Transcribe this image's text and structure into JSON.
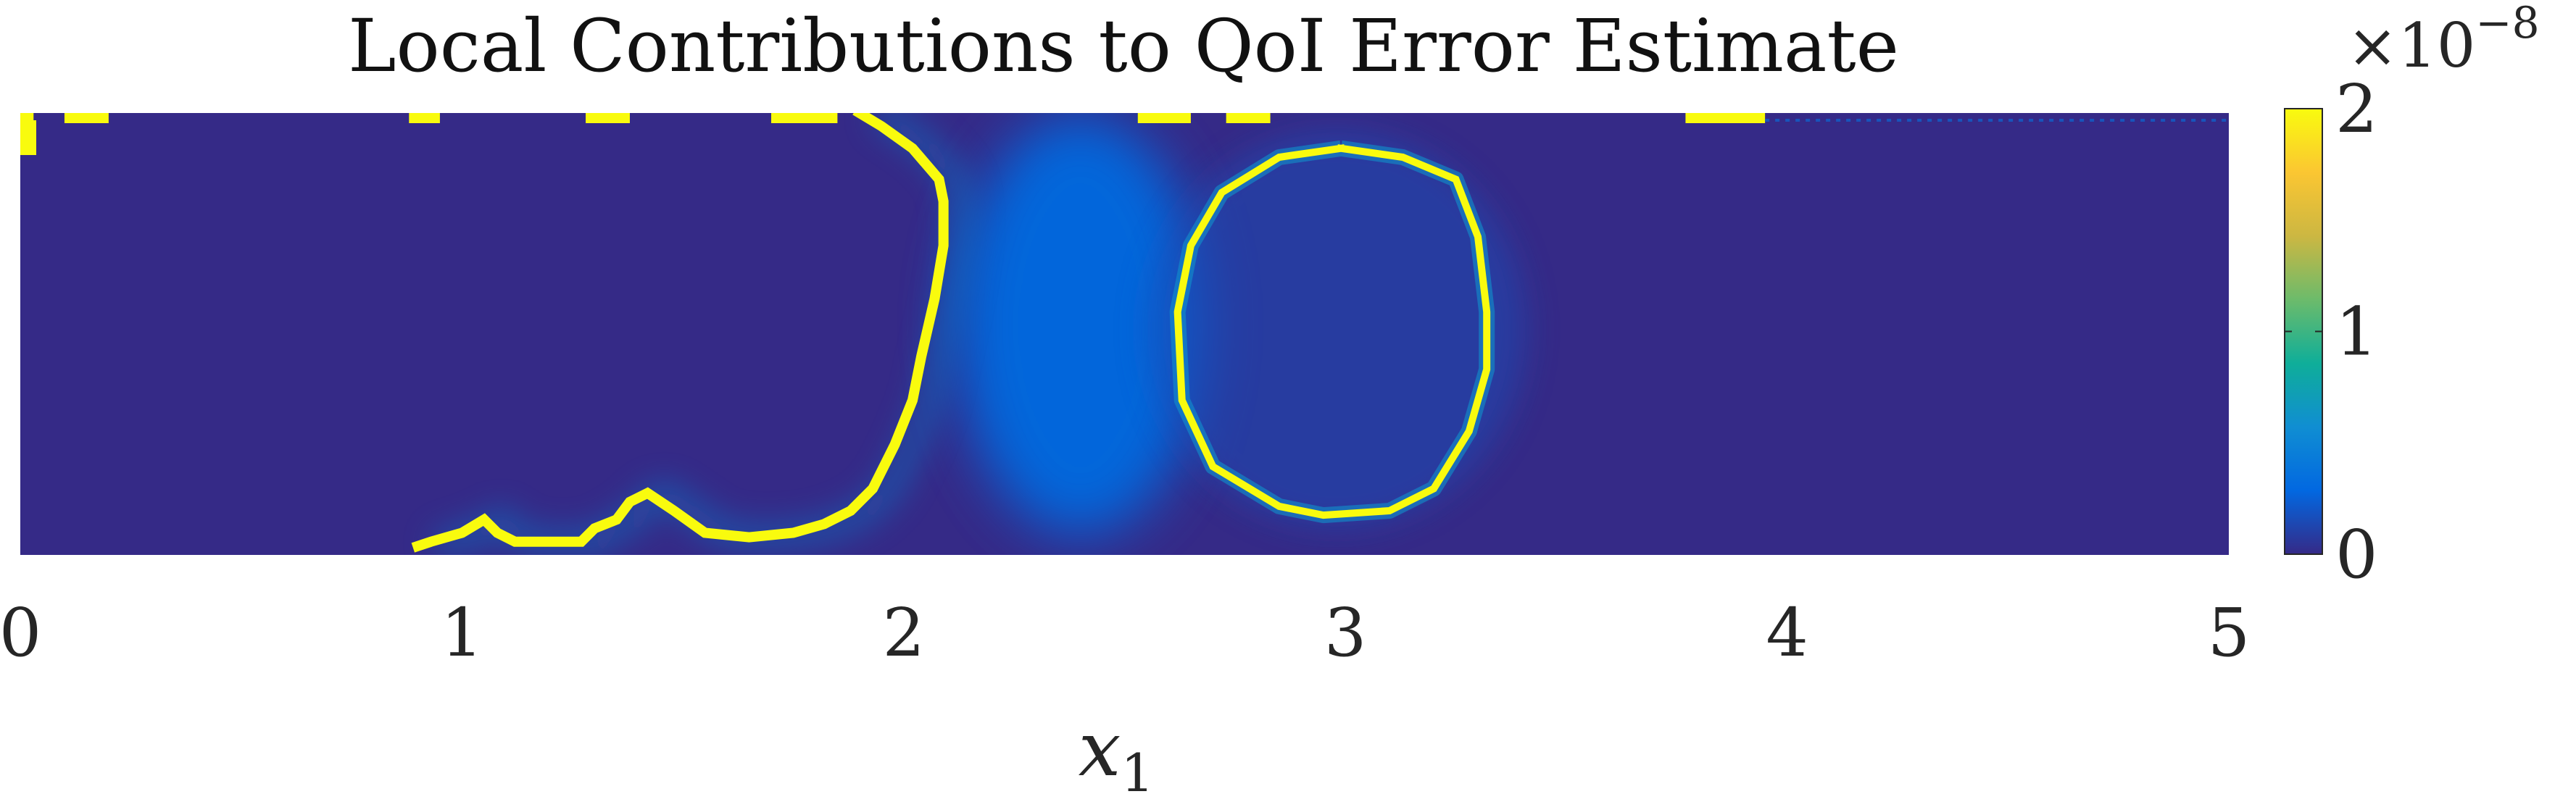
{
  "chart_data": {
    "type": "heatmap",
    "title": "Local Contributions to QoI Error Estimate",
    "xlabel": "x",
    "xlabel_subscript": "1",
    "ylabel": "",
    "xlim": [
      0,
      5
    ],
    "ylim": [
      0,
      1
    ],
    "x_ticks": [
      {
        "value": 0,
        "label": "0"
      },
      {
        "value": 1,
        "label": "1"
      },
      {
        "value": 2,
        "label": "2"
      },
      {
        "value": 3,
        "label": "3"
      },
      {
        "value": 4,
        "label": "4"
      },
      {
        "value": 5,
        "label": "5"
      }
    ],
    "grid": false,
    "colorbar": {
      "location": "right",
      "range": [
        0,
        2
      ],
      "ticks": [
        {
          "value": 0,
          "label": "0"
        },
        {
          "value": 1,
          "label": "1"
        },
        {
          "value": 2,
          "label": "2"
        }
      ],
      "exponent_base": "×10",
      "exponent_power": "−8",
      "colormap": "parula",
      "colors": [
        "#352a87",
        "#0268e1",
        "#108ed2",
        "#0fae99",
        "#6cbb6b",
        "#ccb742",
        "#fbc632",
        "#f9fb0e"
      ]
    },
    "background_value": 0,
    "features": [
      {
        "name": "left-interface-contour",
        "kind": "polyline",
        "value": 2,
        "points": [
          [
            0.9,
            0.02
          ],
          [
            0.93,
            0.03
          ],
          [
            1.0,
            0.05
          ],
          [
            1.05,
            0.08
          ],
          [
            1.08,
            0.05
          ],
          [
            1.12,
            0.03
          ],
          [
            1.2,
            0.03
          ],
          [
            1.27,
            0.03
          ],
          [
            1.3,
            0.06
          ],
          [
            1.35,
            0.08
          ],
          [
            1.38,
            0.12
          ],
          [
            1.42,
            0.14
          ],
          [
            1.48,
            0.1
          ],
          [
            1.55,
            0.05
          ],
          [
            1.65,
            0.04
          ],
          [
            1.75,
            0.05
          ],
          [
            1.82,
            0.07
          ],
          [
            1.88,
            0.1
          ],
          [
            1.93,
            0.15
          ],
          [
            1.98,
            0.25
          ],
          [
            2.02,
            0.35
          ],
          [
            2.04,
            0.45
          ],
          [
            2.07,
            0.58
          ],
          [
            2.09,
            0.7
          ],
          [
            2.09,
            0.8
          ],
          [
            2.08,
            0.85
          ],
          [
            2.02,
            0.92
          ],
          [
            1.95,
            0.97
          ],
          [
            1.9,
            1.0
          ]
        ]
      },
      {
        "name": "bubble-contour",
        "kind": "polyline",
        "value": 2,
        "points": [
          [
            2.99,
            0.92
          ],
          [
            3.13,
            0.9
          ],
          [
            3.25,
            0.85
          ],
          [
            3.3,
            0.72
          ],
          [
            3.32,
            0.55
          ],
          [
            3.32,
            0.42
          ],
          [
            3.28,
            0.28
          ],
          [
            3.2,
            0.15
          ],
          [
            3.1,
            0.1
          ],
          [
            2.95,
            0.09
          ],
          [
            2.85,
            0.11
          ],
          [
            2.7,
            0.2
          ],
          [
            2.63,
            0.35
          ],
          [
            2.62,
            0.55
          ],
          [
            2.65,
            0.7
          ],
          [
            2.72,
            0.82
          ],
          [
            2.85,
            0.9
          ],
          [
            2.99,
            0.92
          ]
        ]
      },
      {
        "name": "wake-blob",
        "kind": "ellipse",
        "value": 0.3,
        "cx": 2.4,
        "cy": 0.52,
        "rx": 0.45,
        "ry": 0.5
      },
      {
        "name": "bubble-halo",
        "kind": "ellipse",
        "value": 0.15,
        "cx": 2.98,
        "cy": 0.51,
        "rx": 0.45,
        "ry": 0.47
      }
    ],
    "top_edge_blips": [
      {
        "x": [
          0.0,
          0.03
        ],
        "value": 2
      },
      {
        "x": [
          0.1,
          0.2
        ],
        "value": 2
      },
      {
        "x": [
          0.88,
          0.95
        ],
        "value": 2
      },
      {
        "x": [
          1.28,
          1.38
        ],
        "value": 2
      },
      {
        "x": [
          1.7,
          1.85
        ],
        "value": 2
      },
      {
        "x": [
          2.53,
          2.65
        ],
        "value": 2
      },
      {
        "x": [
          2.73,
          2.83
        ],
        "value": 2
      },
      {
        "x": [
          3.77,
          3.95
        ],
        "value": 2
      }
    ]
  }
}
